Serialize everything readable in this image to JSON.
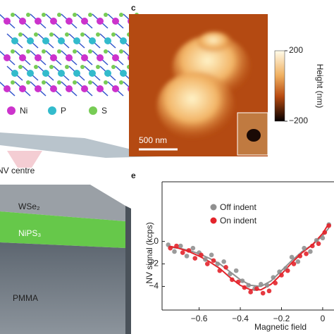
{
  "panel_a": {
    "legend": [
      "Ni",
      "P",
      "S"
    ]
  },
  "panel_b": {
    "labels": [
      "NV centre",
      "WSe₂",
      "NiPS₃",
      "PMMA"
    ]
  },
  "panel_c": {
    "panel_label": "c",
    "scale_bar": "500 nm",
    "colorbar": {
      "label": "Height (nm)",
      "lim": [
        -200,
        200
      ],
      "ticks": [
        200,
        {
          "value": -200,
          "label": "−200"
        }
      ]
    }
  },
  "chart_data": {
    "type": "scatter",
    "panel_label": "e",
    "xlabel": "Magnetic field",
    "ylabel": "NV signal (kcps)",
    "xlim": [
      -0.78,
      0.055
    ],
    "ylim": [
      -6.1,
      5.3
    ],
    "xticks": [
      {
        "value": -0.6,
        "label": "−0.6"
      },
      {
        "value": -0.4,
        "label": "−0.4"
      },
      {
        "value": -0.2,
        "label": "−0.2"
      },
      0
    ],
    "yticks": [
      {
        "value": -4,
        "label": "−4"
      },
      {
        "value": -2,
        "label": "−2"
      },
      0
    ],
    "fit_x": [
      -0.75,
      -0.7,
      -0.65,
      -0.6,
      -0.55,
      -0.5,
      -0.45,
      -0.4,
      -0.35,
      -0.3,
      -0.25,
      -0.2,
      -0.15,
      -0.1,
      -0.05,
      0,
      0.03
    ],
    "series": [
      {
        "name": "Off indent",
        "color": "#909090",
        "x": [
          -0.75,
          -0.72,
          -0.69,
          -0.66,
          -0.63,
          -0.6,
          -0.57,
          -0.54,
          -0.51,
          -0.48,
          -0.45,
          -0.42,
          -0.39,
          -0.36,
          -0.33,
          -0.3,
          -0.27,
          -0.24,
          -0.21,
          -0.18,
          -0.15,
          -0.12,
          -0.09,
          -0.06,
          -0.03,
          0,
          0.03
        ],
        "values": [
          -0.3,
          -0.9,
          -0.4,
          -1.3,
          -0.6,
          -1.0,
          -1.6,
          -1.2,
          -2.0,
          -1.8,
          -2.9,
          -2.6,
          -3.5,
          -3.9,
          -4.2,
          -3.8,
          -3.9,
          -3.2,
          -2.7,
          -2.4,
          -1.4,
          -1.8,
          -0.6,
          -0.9,
          0.1,
          0.3,
          1.5
        ],
        "fit_values": [
          -0.5,
          -0.6,
          -0.8,
          -1.1,
          -1.5,
          -2.0,
          -2.7,
          -3.4,
          -3.9,
          -4.0,
          -3.5,
          -2.6,
          -1.7,
          -0.9,
          -0.3,
          0.5,
          1.2
        ]
      },
      {
        "name": "On indent",
        "color": "#e3242b",
        "x": [
          -0.74,
          -0.71,
          -0.68,
          -0.65,
          -0.62,
          -0.59,
          -0.56,
          -0.53,
          -0.5,
          -0.47,
          -0.44,
          -0.41,
          -0.38,
          -0.35,
          -0.32,
          -0.29,
          -0.26,
          -0.23,
          -0.2,
          -0.17,
          -0.14,
          -0.11,
          -0.08,
          -0.05,
          -0.02,
          0.01,
          0.03
        ],
        "values": [
          -0.6,
          -0.4,
          -1.0,
          -0.8,
          -1.5,
          -1.2,
          -2.0,
          -1.7,
          -2.6,
          -2.3,
          -3.4,
          -3.6,
          -4.1,
          -4.5,
          -4.2,
          -4.6,
          -4.4,
          -3.7,
          -3.0,
          -2.6,
          -2.0,
          -1.3,
          -1.1,
          -0.4,
          -0.2,
          0.8,
          1.4
        ],
        "fit_values": [
          -0.4,
          -0.6,
          -0.9,
          -1.3,
          -1.8,
          -2.4,
          -3.2,
          -3.9,
          -4.3,
          -4.3,
          -3.8,
          -2.9,
          -1.9,
          -1.0,
          -0.3,
          0.7,
          1.6
        ]
      }
    ]
  }
}
